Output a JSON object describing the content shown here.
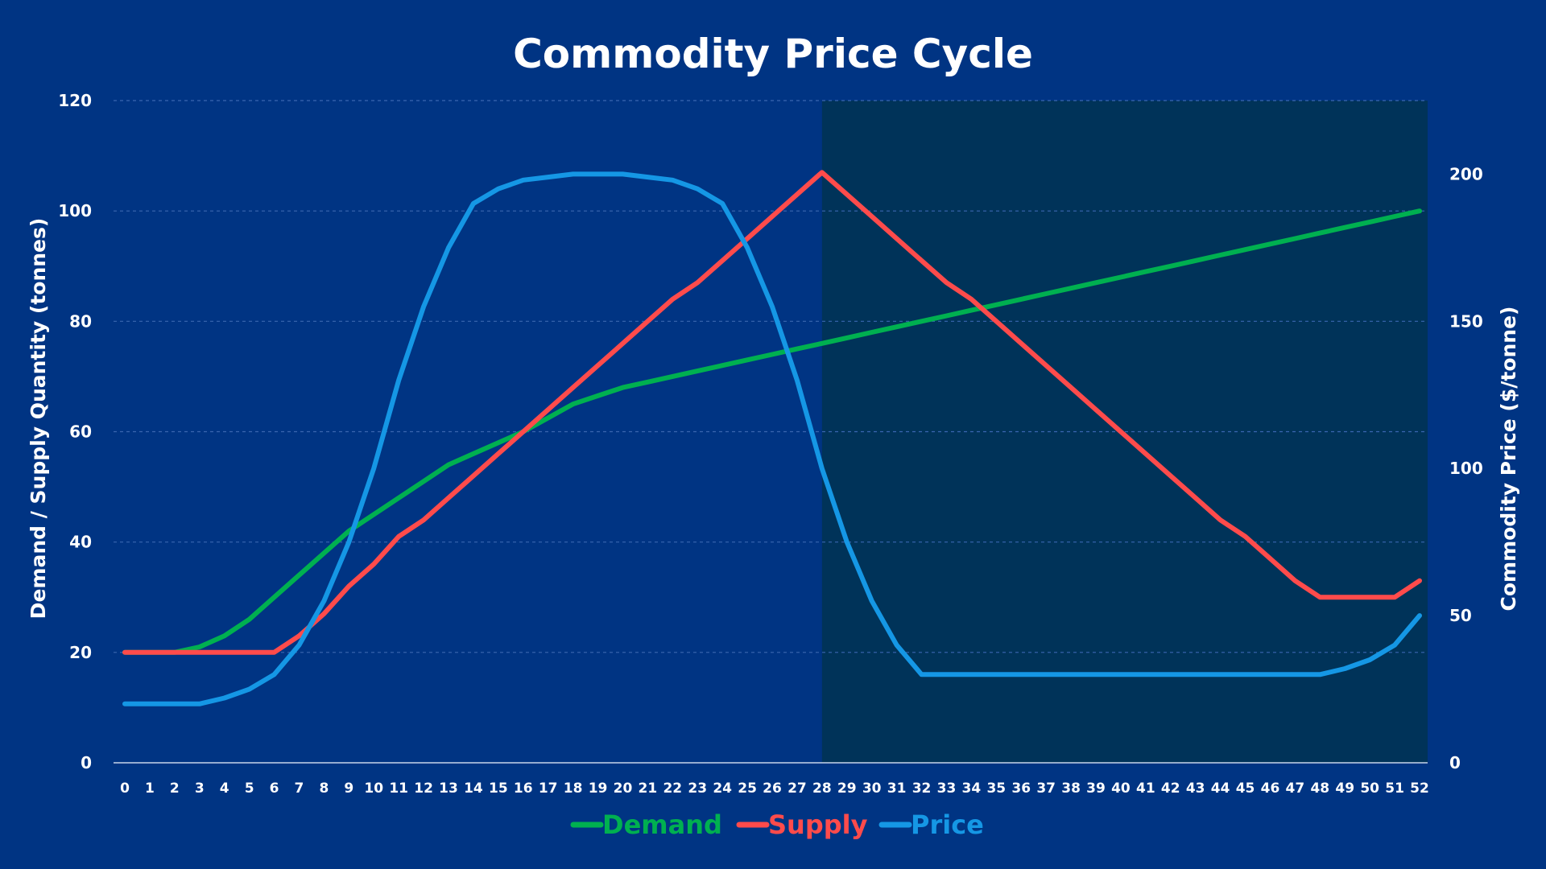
{
  "chart_data": {
    "type": "line",
    "title": "Commodity Price Cycle",
    "ylabel": "Demand  / Supply Quantity (tonnes)",
    "y2label": "Commodity Price ($/tonne)",
    "x": [
      0,
      1,
      2,
      3,
      4,
      5,
      6,
      7,
      8,
      9,
      10,
      11,
      12,
      13,
      14,
      15,
      16,
      17,
      18,
      19,
      20,
      21,
      22,
      23,
      24,
      25,
      26,
      27,
      28,
      29,
      30,
      31,
      32,
      33,
      34,
      35,
      36,
      37,
      38,
      39,
      40,
      41,
      42,
      43,
      44,
      45,
      46,
      47,
      48,
      49,
      50,
      51,
      52
    ],
    "ylim": [
      0,
      120
    ],
    "y2lim": [
      0,
      225
    ],
    "yticks": [
      0,
      20,
      40,
      60,
      80,
      100,
      120
    ],
    "y2ticks": [
      0,
      50,
      100,
      150,
      200
    ],
    "grid": true,
    "legend": "bottom",
    "shaded_region": {
      "x_start": 28,
      "x_end": 52,
      "color": "#003359"
    },
    "series": [
      {
        "name": "Demand",
        "axis": "left",
        "color": "#00b050",
        "values": [
          20,
          20,
          20,
          21,
          23,
          26,
          30,
          34,
          38,
          42,
          45,
          48,
          51,
          54,
          56,
          58,
          60,
          62.5,
          65,
          66.5,
          68,
          69,
          70,
          71,
          72,
          73,
          74,
          75,
          76,
          77,
          78,
          79,
          80,
          81,
          82,
          83,
          84,
          85,
          86,
          87,
          88,
          89,
          90,
          91,
          92,
          93,
          94,
          95,
          96,
          97,
          98,
          99,
          100
        ]
      },
      {
        "name": "Supply",
        "axis": "left",
        "color": "#ff4b4b",
        "values": [
          20,
          20,
          20,
          20,
          20,
          20,
          20,
          23,
          27,
          32,
          36,
          41,
          44,
          48,
          52,
          56,
          60,
          64,
          68,
          72,
          76,
          80,
          84,
          87,
          91,
          95,
          99,
          103,
          107,
          103,
          99,
          95,
          91,
          87,
          84,
          80,
          76,
          72,
          68,
          64,
          60,
          56,
          52,
          48,
          44,
          41,
          37,
          33,
          30,
          30,
          30,
          30,
          33
        ]
      },
      {
        "name": "Price",
        "axis": "right",
        "color": "#1597e5",
        "values": [
          20,
          20,
          20,
          20,
          22,
          25,
          30,
          40,
          55,
          75,
          100,
          130,
          155,
          175,
          190,
          195,
          198,
          199,
          200,
          200,
          200,
          199,
          198,
          195,
          190,
          175,
          155,
          130,
          100,
          75,
          55,
          40,
          30,
          30,
          30,
          30,
          30,
          30,
          30,
          30,
          30,
          30,
          30,
          30,
          30,
          30,
          30,
          30,
          30,
          32,
          35,
          40,
          50
        ]
      }
    ]
  }
}
